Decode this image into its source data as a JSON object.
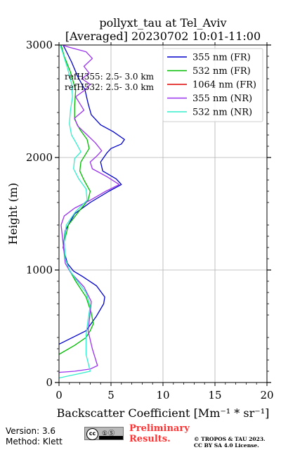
{
  "chart_data": {
    "type": "line",
    "title": "pollyxt_tau at Tel_Aviv",
    "subtitle": "[Averaged] 20230702 10:01-11:00",
    "xlabel_prefix": "Backscatter Coefficient ",
    "xlabel_units": "[Mm⁻¹ * sr⁻¹]",
    "ylabel": "Height (m)",
    "xlim": [
      0,
      20
    ],
    "ylim": [
      0,
      3000
    ],
    "xticks": [
      0,
      5,
      10,
      15,
      20
    ],
    "yticks": [
      0,
      1000,
      2000,
      3000
    ],
    "grid": true,
    "legend_position": "top-right",
    "annotations": [
      "refH355:  2.5- 3.0 km",
      "refH532:  2.5- 3.0 km"
    ],
    "series": [
      {
        "name": "355 nm (FR)",
        "color": "#0000cc",
        "points": [
          [
            0,
            340
          ],
          [
            2.6,
            460
          ],
          [
            3.6,
            590
          ],
          [
            4.3,
            700
          ],
          [
            4.4,
            760
          ],
          [
            3.6,
            860
          ],
          [
            2.3,
            940
          ],
          [
            1.4,
            990
          ],
          [
            0.8,
            1060
          ],
          [
            0.4,
            1200
          ],
          [
            0.6,
            1350
          ],
          [
            1.5,
            1500
          ],
          [
            3.0,
            1600
          ],
          [
            4.8,
            1700
          ],
          [
            6.0,
            1760
          ],
          [
            5.5,
            1810
          ],
          [
            4.2,
            1880
          ],
          [
            4.0,
            1960
          ],
          [
            4.6,
            2040
          ],
          [
            5.0,
            2080
          ],
          [
            6.0,
            2120
          ],
          [
            6.3,
            2160
          ],
          [
            5.2,
            2230
          ],
          [
            4.0,
            2290
          ],
          [
            3.1,
            2380
          ],
          [
            2.8,
            2480
          ],
          [
            2.5,
            2600
          ],
          [
            1.8,
            2720
          ],
          [
            1.2,
            2850
          ],
          [
            0.4,
            3000
          ]
        ]
      },
      {
        "name": "532 nm (FR)",
        "color": "#00bb00",
        "points": [
          [
            0,
            250
          ],
          [
            1.5,
            330
          ],
          [
            2.6,
            400
          ],
          [
            3.0,
            460
          ],
          [
            3.3,
            520
          ],
          [
            3.1,
            620
          ],
          [
            2.6,
            760
          ],
          [
            1.6,
            900
          ],
          [
            1.0,
            1000
          ],
          [
            0.6,
            1100
          ],
          [
            0.5,
            1250
          ],
          [
            0.9,
            1400
          ],
          [
            1.9,
            1520
          ],
          [
            2.8,
            1620
          ],
          [
            3.0,
            1700
          ],
          [
            2.4,
            1800
          ],
          [
            2.0,
            1880
          ],
          [
            2.1,
            1960
          ],
          [
            2.5,
            2020
          ],
          [
            2.9,
            2080
          ],
          [
            2.7,
            2160
          ],
          [
            2.0,
            2250
          ],
          [
            1.5,
            2340
          ],
          [
            1.5,
            2460
          ],
          [
            1.6,
            2600
          ],
          [
            1.1,
            2760
          ],
          [
            0.5,
            2900
          ],
          [
            0.2,
            3000
          ]
        ]
      },
      {
        "name": "1064 nm (FR)",
        "color": "#dd0000",
        "points": []
      },
      {
        "name": "355 nm (NR)",
        "color": "#9933ee",
        "points": [
          [
            0,
            90
          ],
          [
            1.5,
            100
          ],
          [
            3.0,
            120
          ],
          [
            3.7,
            150
          ],
          [
            3.2,
            300
          ],
          [
            2.8,
            460
          ],
          [
            3.0,
            620
          ],
          [
            3.1,
            720
          ],
          [
            2.4,
            850
          ],
          [
            1.1,
            980
          ],
          [
            0.6,
            1060
          ],
          [
            0.2,
            1400
          ],
          [
            0.5,
            1480
          ],
          [
            1.5,
            1550
          ],
          [
            3.0,
            1620
          ],
          [
            4.5,
            1700
          ],
          [
            5.8,
            1760
          ],
          [
            4.6,
            1830
          ],
          [
            3.2,
            1900
          ],
          [
            3.0,
            1960
          ],
          [
            3.6,
            2010
          ],
          [
            4.1,
            2060
          ],
          [
            3.5,
            2130
          ],
          [
            2.6,
            2210
          ],
          [
            1.8,
            2280
          ],
          [
            1.5,
            2350
          ],
          [
            2.4,
            2420
          ],
          [
            2.0,
            2480
          ],
          [
            1.6,
            2540
          ],
          [
            2.5,
            2600
          ],
          [
            3.0,
            2650
          ],
          [
            2.2,
            2700
          ],
          [
            2.9,
            2750
          ],
          [
            2.4,
            2810
          ],
          [
            3.2,
            2880
          ],
          [
            2.6,
            2940
          ],
          [
            1.0,
            2980
          ],
          [
            0.3,
            3000
          ]
        ]
      },
      {
        "name": "532 nm (NR)",
        "color": "#33eecc",
        "points": [
          [
            0,
            40
          ],
          [
            1.0,
            60
          ],
          [
            2.0,
            80
          ],
          [
            3.0,
            100
          ],
          [
            2.6,
            250
          ],
          [
            2.6,
            420
          ],
          [
            2.8,
            560
          ],
          [
            3.0,
            680
          ],
          [
            2.6,
            800
          ],
          [
            1.6,
            920
          ],
          [
            1.0,
            1000
          ],
          [
            0.6,
            1100
          ],
          [
            0.5,
            1250
          ],
          [
            0.7,
            1400
          ],
          [
            1.6,
            1520
          ],
          [
            2.7,
            1620
          ],
          [
            2.6,
            1720
          ],
          [
            1.9,
            1810
          ],
          [
            1.4,
            1900
          ],
          [
            1.5,
            1990
          ],
          [
            2.1,
            2050
          ],
          [
            1.7,
            2120
          ],
          [
            1.2,
            2200
          ],
          [
            1.0,
            2300
          ],
          [
            1.1,
            2420
          ],
          [
            1.3,
            2540
          ],
          [
            1.2,
            2660
          ],
          [
            0.8,
            2800
          ],
          [
            0.3,
            2950
          ],
          [
            0.1,
            3000
          ]
        ]
      }
    ]
  },
  "footer": {
    "version": "Version: 3.6",
    "method": "Method: Klett",
    "cc_badge": "cc",
    "cc_badge_icons": "①Ⓢ",
    "preliminary_line1": "Preliminary",
    "preliminary_line2": "Results.",
    "copyright_line1": "© TROPOS & TAU 2023.",
    "copyright_line2": "CC BY SA 4.0 License."
  }
}
